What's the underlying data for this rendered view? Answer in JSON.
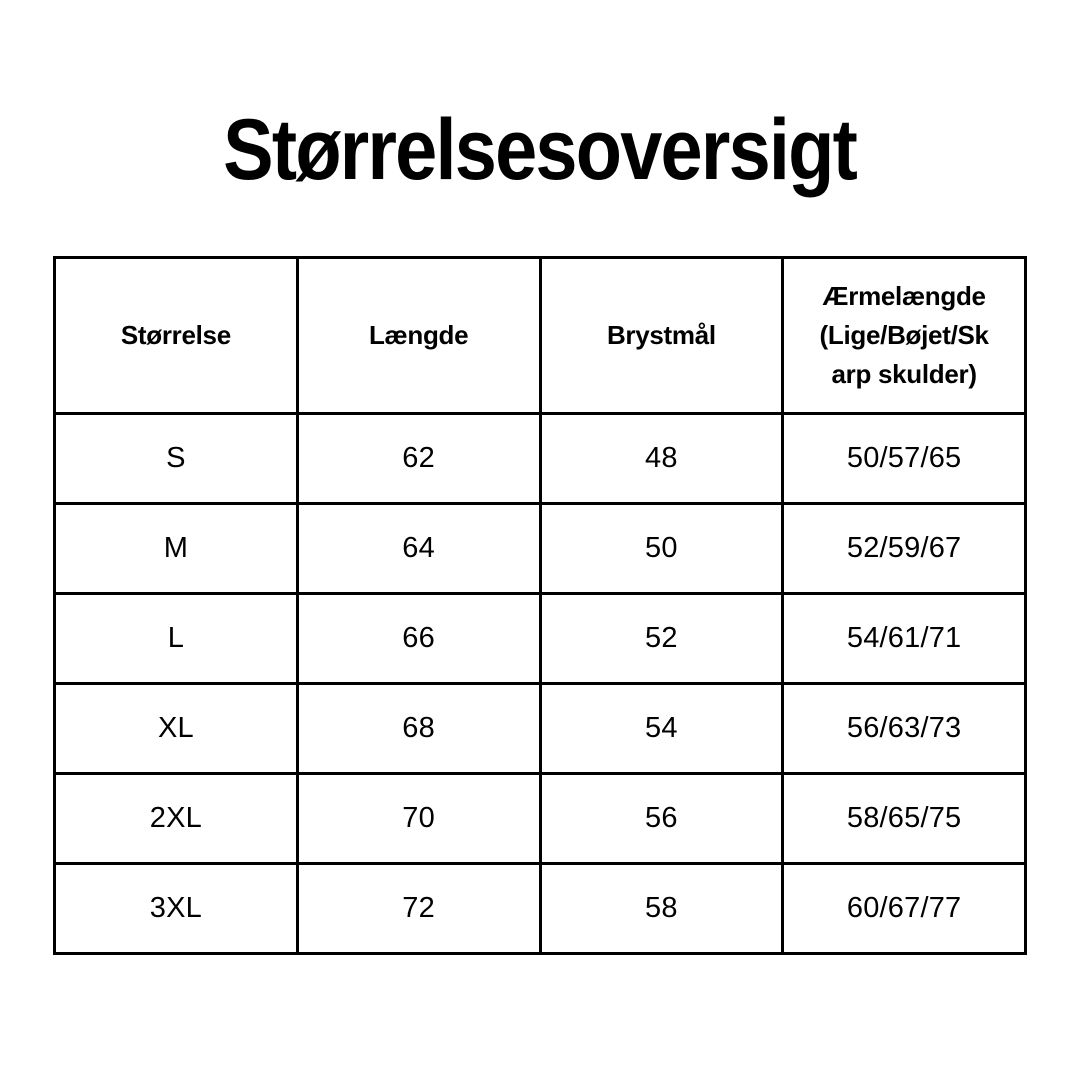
{
  "page": {
    "title": "Størrelsesoversigt"
  },
  "colors": {
    "background": "#ffffff",
    "text": "#000000",
    "table_border": "#000000"
  },
  "table": {
    "headers": [
      "Størrelse",
      "Længde",
      "Brystmål",
      "Ærmelængde\n(Lige/Bøjet/Sk\narp skulder)"
    ],
    "rows": [
      [
        "S",
        "62",
        "48",
        "50/57/65"
      ],
      [
        "M",
        "64",
        "50",
        "52/59/67"
      ],
      [
        "L",
        "66",
        "52",
        "54/61/71"
      ],
      [
        "XL",
        "68",
        "54",
        "56/63/73"
      ],
      [
        "2XL",
        "70",
        "56",
        "58/65/75"
      ],
      [
        "3XL",
        "72",
        "58",
        "60/67/77"
      ]
    ]
  }
}
